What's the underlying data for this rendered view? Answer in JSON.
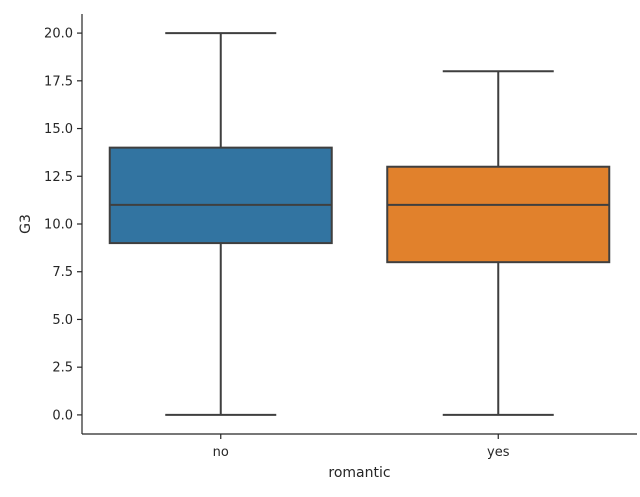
{
  "chart_data": {
    "type": "box",
    "xlabel": "romantic",
    "ylabel": "G3",
    "ylim": [
      -1,
      21
    ],
    "yticks": [
      0.0,
      2.5,
      5.0,
      7.5,
      10.0,
      12.5,
      15.0,
      17.5,
      20.0
    ],
    "ytick_labels": [
      "0.0",
      "2.5",
      "5.0",
      "7.5",
      "10.0",
      "12.5",
      "15.0",
      "17.5",
      "20.0"
    ],
    "categories": [
      "no",
      "yes"
    ],
    "boxes": [
      {
        "category": "no",
        "min": 0,
        "q1": 9,
        "median": 11,
        "q3": 14,
        "max": 20,
        "color": "#3274a1"
      },
      {
        "category": "yes",
        "min": 0,
        "q1": 8,
        "median": 11,
        "q3": 13,
        "max": 18,
        "color": "#e1812c"
      }
    ],
    "line_color": "#3f3f3f",
    "grid": false,
    "spines": "left-bottom"
  }
}
